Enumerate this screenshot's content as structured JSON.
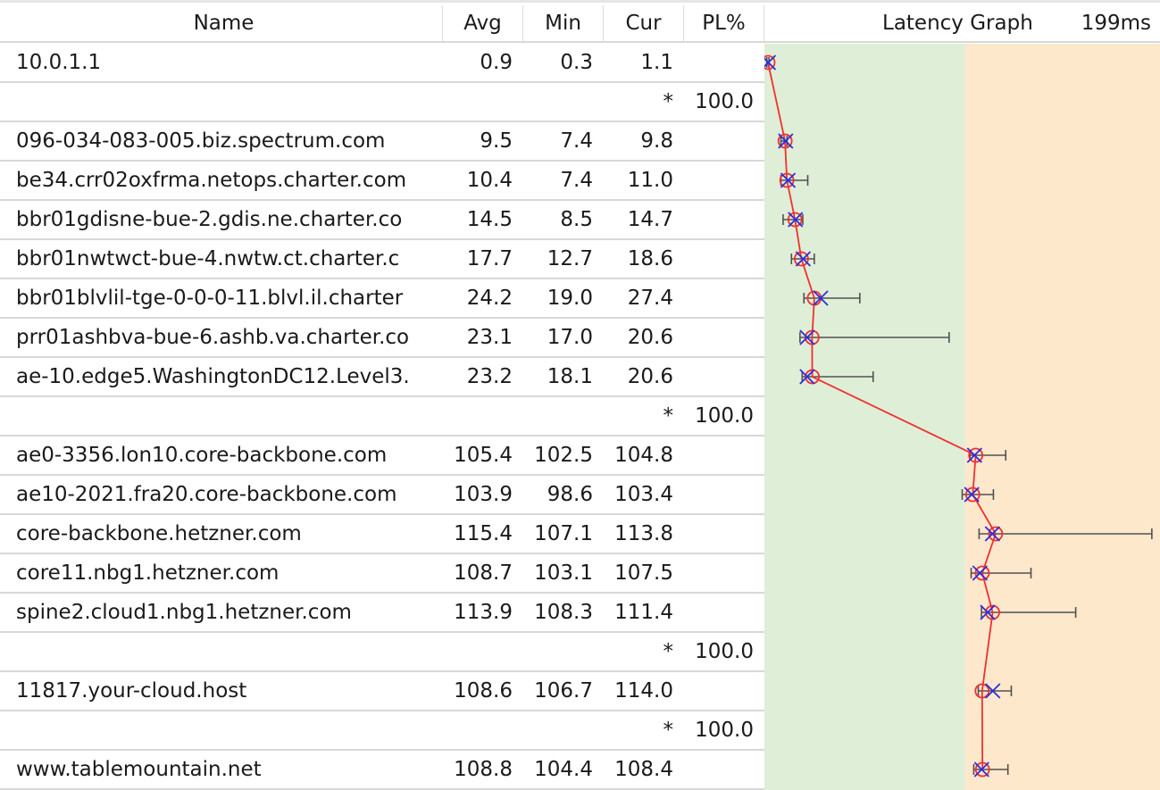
{
  "header": {
    "name_label": "Name",
    "avg_label": "Avg",
    "min_label": "Min",
    "cur_label": "Cur",
    "pl_label": "PL%",
    "graph_label": "Latency Graph",
    "scale_label": "199ms"
  },
  "colors": {
    "good_zone": "#dfeed6",
    "warn_zone": "#fde8cc",
    "line": "#f03030",
    "avg_marker": "#f03030",
    "cur_marker": "#2b2be0",
    "whisker": "#505050"
  },
  "graph_scale_ms": 199,
  "zone_threshold_ms": 100,
  "hops": [
    {
      "name": "10.0.1.1",
      "avg": "0.9",
      "min": "0.3",
      "cur": "1.1",
      "pl": "",
      "max": 1.4
    },
    {
      "name": "",
      "avg": "",
      "min": "",
      "cur": "*",
      "pl": "100.0"
    },
    {
      "name": "096-034-083-005.biz.spectrum.com",
      "avg": "9.5",
      "min": "7.4",
      "cur": "9.8",
      "pl": "",
      "max": 10.5
    },
    {
      "name": "be34.crr02oxfrma.netops.charter.com",
      "avg": "10.4",
      "min": "7.4",
      "cur": "11.0",
      "pl": "",
      "max": 20.9
    },
    {
      "name": "bbr01gdisne-bue-2.gdis.ne.charter.co",
      "avg": "14.5",
      "min": "8.5",
      "cur": "14.7",
      "pl": "",
      "max": 18.4
    },
    {
      "name": "bbr01nwtwct-bue-4.nwtw.ct.charter.c",
      "avg": "17.7",
      "min": "12.7",
      "cur": "18.6",
      "pl": "",
      "max": 24.2
    },
    {
      "name": "bbr01blvlil-tge-0-0-0-11.blvl.il.charter",
      "avg": "24.2",
      "min": "19.0",
      "cur": "27.4",
      "pl": "",
      "max": 47.1
    },
    {
      "name": "prr01ashbva-bue-6.ashb.va.charter.co",
      "avg": "23.1",
      "min": "17.0",
      "cur": "20.6",
      "pl": "",
      "max": 92.0
    },
    {
      "name": "ae-10.edge5.WashingtonDC12.Level3.",
      "avg": "23.2",
      "min": "18.1",
      "cur": "20.6",
      "pl": "",
      "max": 53.8
    },
    {
      "name": "",
      "avg": "",
      "min": "",
      "cur": "*",
      "pl": "100.0"
    },
    {
      "name": "ae0-3356.lon10.core-backbone.com",
      "avg": "105.4",
      "min": "102.5",
      "cur": "104.8",
      "pl": "",
      "max": 120.5
    },
    {
      "name": "ae10-2021.fra20.core-backbone.com",
      "avg": "103.9",
      "min": "98.6",
      "cur": "103.4",
      "pl": "",
      "max": 114.3
    },
    {
      "name": "core-backbone.hetzner.com",
      "avg": "115.4",
      "min": "107.1",
      "cur": "113.8",
      "pl": "",
      "max": 194.0
    },
    {
      "name": "core11.nbg1.hetzner.com",
      "avg": "108.7",
      "min": "103.1",
      "cur": "107.5",
      "pl": "",
      "max": 133.2
    },
    {
      "name": "spine2.cloud1.nbg1.hetzner.com",
      "avg": "113.9",
      "min": "108.3",
      "cur": "111.4",
      "pl": "",
      "max": 155.7
    },
    {
      "name": "",
      "avg": "",
      "min": "",
      "cur": "*",
      "pl": "100.0"
    },
    {
      "name": "11817.your-cloud.host",
      "avg": "108.6",
      "min": "106.7",
      "cur": "114.0",
      "pl": "",
      "max": 123.3
    },
    {
      "name": "",
      "avg": "",
      "min": "",
      "cur": "*",
      "pl": "100.0"
    },
    {
      "name": "www.tablemountain.net",
      "avg": "108.8",
      "min": "104.4",
      "cur": "108.4",
      "pl": "",
      "max": 121.6
    }
  ]
}
